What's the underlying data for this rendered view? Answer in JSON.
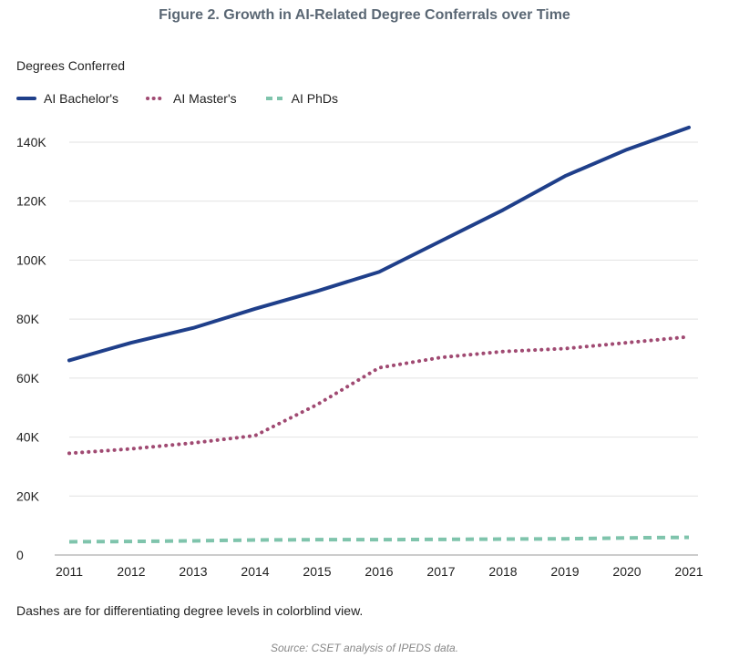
{
  "title": "Figure 2. Growth in AI-Related Degree Conferrals over Time",
  "footnote": "Dashes are for differentiating degree levels in colorblind view.",
  "source": "Source: CSET analysis of IPEDS data.",
  "chart_data": {
    "type": "line",
    "title": "Figure 2. Growth in AI-Related Degree Conferrals over Time",
    "ylabel": "Degrees Conferred",
    "xlabel": "",
    "x": [
      2011,
      2012,
      2013,
      2014,
      2015,
      2016,
      2017,
      2018,
      2019,
      2020,
      2021
    ],
    "ylim": [
      0,
      140000
    ],
    "yticks": [
      0,
      20000,
      40000,
      60000,
      80000,
      100000,
      120000,
      140000
    ],
    "ytick_labels": [
      "0",
      "20K",
      "40K",
      "60K",
      "80K",
      "100K",
      "120K",
      "140K"
    ],
    "grid": "horizontal",
    "legend_position": "top-left",
    "series": [
      {
        "name": "AI Bachelor's",
        "color": "#1f3f8a",
        "style": "solid",
        "values": [
          66000,
          72000,
          77000,
          83500,
          89500,
          96000,
          106500,
          117000,
          128500,
          137500,
          145000
        ]
      },
      {
        "name": "AI Master's",
        "color": "#a04a72",
        "style": "dotted",
        "values": [
          34500,
          36000,
          38000,
          40500,
          51000,
          63500,
          67000,
          69000,
          70000,
          72000,
          74000
        ]
      },
      {
        "name": "AI PhDs",
        "color": "#7fc4ac",
        "style": "dashed",
        "values": [
          4500,
          4600,
          4800,
          5100,
          5200,
          5200,
          5300,
          5400,
          5500,
          5800,
          6000
        ]
      }
    ]
  }
}
